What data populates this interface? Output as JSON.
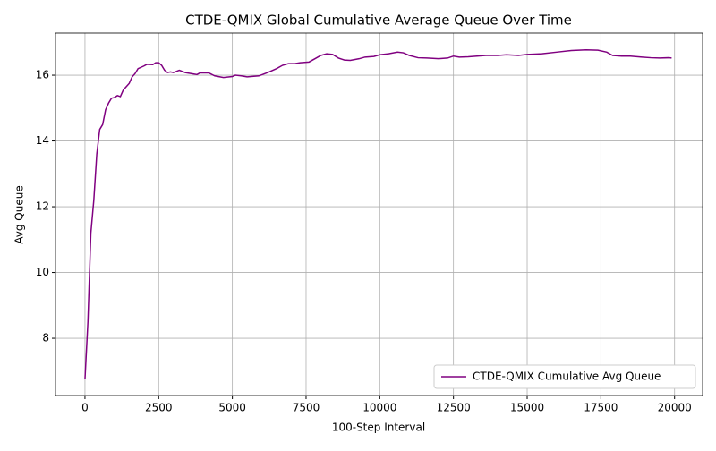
{
  "chart_data": {
    "type": "line",
    "title": "CTDE-QMIX Global Cumulative Average Queue Over Time",
    "xlabel": "100-Step Interval",
    "ylabel": "Avg Queue",
    "x": [
      0,
      100,
      200,
      300,
      400,
      500,
      600,
      700,
      800,
      900,
      1000,
      1100,
      1200,
      1300,
      1500,
      1600,
      1700,
      1800,
      2000,
      2100,
      2300,
      2400,
      2500,
      2600,
      2700,
      2800,
      2900,
      3000,
      3200,
      3400,
      3600,
      3800,
      3900,
      4200,
      4400,
      4700,
      5000,
      5100,
      5300,
      5500,
      5900,
      6200,
      6500,
      6700,
      6900,
      7100,
      7300,
      7600,
      7800,
      8000,
      8200,
      8400,
      8600,
      8800,
      9000,
      9300,
      9500,
      9800,
      10000,
      10300,
      10600,
      10800,
      11000,
      11300,
      11600,
      12000,
      12300,
      12500,
      12700,
      13000,
      13300,
      13600,
      14000,
      14300,
      14700,
      15000,
      15500,
      16000,
      16500,
      17000,
      17400,
      17700,
      17900,
      18200,
      18500,
      18900,
      19200,
      19500,
      19800,
      19900
    ],
    "series": [
      {
        "name": "CTDE-QMIX Cumulative Avg Queue",
        "color": "#800080",
        "values": [
          6.75,
          8.5,
          11.2,
          12.2,
          13.6,
          14.35,
          14.5,
          14.95,
          15.15,
          15.3,
          15.32,
          15.38,
          15.35,
          15.55,
          15.75,
          15.95,
          16.05,
          16.2,
          16.28,
          16.33,
          16.32,
          16.38,
          16.38,
          16.3,
          16.15,
          16.08,
          16.1,
          16.08,
          16.15,
          16.08,
          16.05,
          16.02,
          16.07,
          16.07,
          15.98,
          15.93,
          15.96,
          16.0,
          15.98,
          15.95,
          15.98,
          16.08,
          16.2,
          16.3,
          16.35,
          16.35,
          16.38,
          16.4,
          16.5,
          16.6,
          16.65,
          16.63,
          16.52,
          16.46,
          16.45,
          16.5,
          16.55,
          16.57,
          16.62,
          16.65,
          16.7,
          16.68,
          16.6,
          16.53,
          16.52,
          16.5,
          16.52,
          16.58,
          16.55,
          16.56,
          16.58,
          16.6,
          16.6,
          16.62,
          16.6,
          16.63,
          16.65,
          16.7,
          16.75,
          16.77,
          16.76,
          16.7,
          16.6,
          16.58,
          16.58,
          16.55,
          16.53,
          16.52,
          16.53,
          16.52
        ]
      }
    ],
    "xlim": [
      -1000,
      20950
    ],
    "ylim": [
      6.26,
      17.28
    ],
    "xticks": [
      0,
      2500,
      5000,
      7500,
      10000,
      12500,
      15000,
      17500,
      20000
    ],
    "yticks": [
      8,
      10,
      12,
      14,
      16
    ],
    "grid": true,
    "legend": "lower right"
  }
}
